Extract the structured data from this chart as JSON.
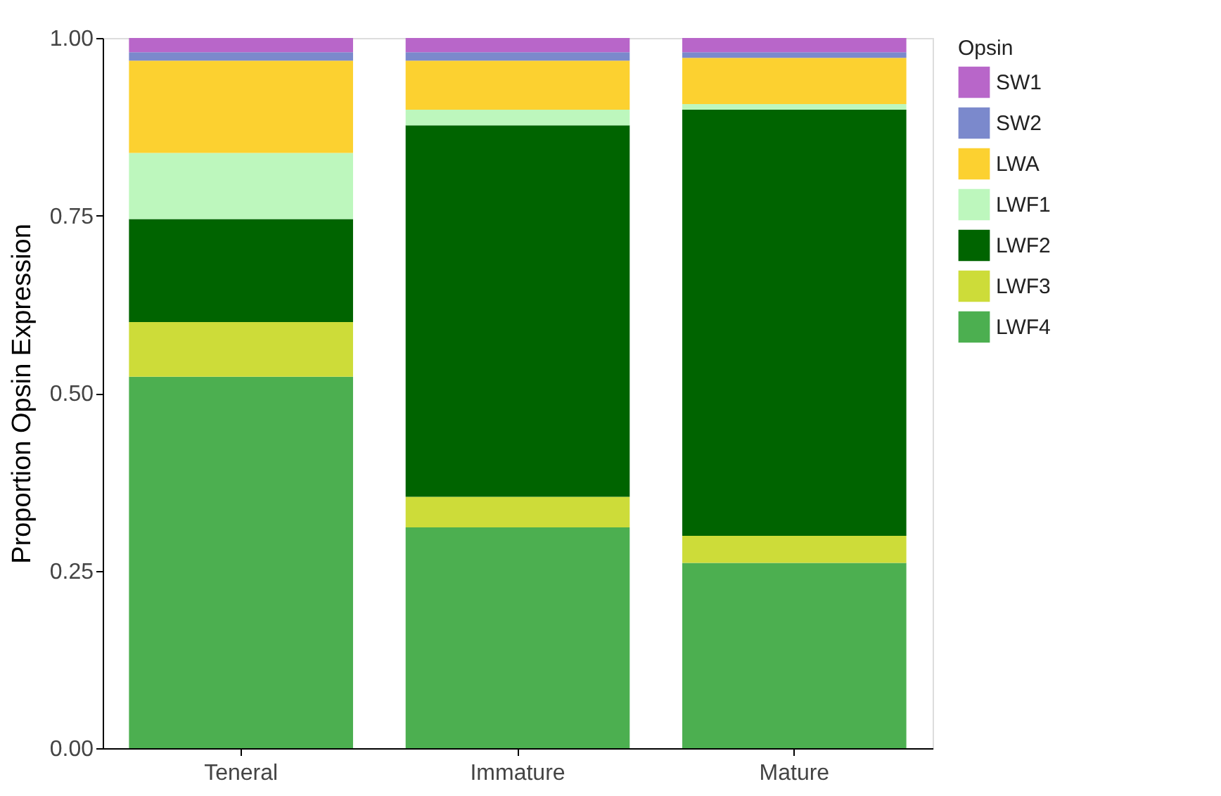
{
  "chart_data": {
    "type": "bar",
    "stacked": true,
    "ylabel": "Proportion Opsin Expression",
    "legend_title": "Opsin",
    "legend": "right",
    "categories": [
      "Teneral",
      "Immature",
      "Mature"
    ],
    "series": [
      {
        "name": "LWF4",
        "color": "#4caf50",
        "values": [
          0.523,
          0.311,
          0.261
        ]
      },
      {
        "name": "LWF3",
        "color": "#cddc39",
        "values": [
          0.077,
          0.043,
          0.038
        ]
      },
      {
        "name": "LWF2",
        "color": "#006400",
        "values": [
          0.145,
          0.523,
          0.6
        ]
      },
      {
        "name": "LWF1",
        "color": "#bdf7bd",
        "values": [
          0.093,
          0.022,
          0.008
        ]
      },
      {
        "name": "LWA",
        "color": "#fcd130",
        "values": [
          0.13,
          0.069,
          0.065
        ]
      },
      {
        "name": "SW2",
        "color": "#7b89cc",
        "values": [
          0.012,
          0.012,
          0.008
        ]
      },
      {
        "name": "SW1",
        "color": "#b866c9",
        "values": [
          0.02,
          0.02,
          0.02
        ]
      }
    ],
    "ylim": [
      0,
      1
    ],
    "yticks": [
      {
        "value": 0,
        "label": "0.00"
      },
      {
        "value": 0.25,
        "label": "0.25"
      },
      {
        "value": 0.5,
        "label": "0.50"
      },
      {
        "value": 0.75,
        "label": "0.75"
      },
      {
        "value": 1,
        "label": "1.00"
      }
    ],
    "grid": false
  }
}
